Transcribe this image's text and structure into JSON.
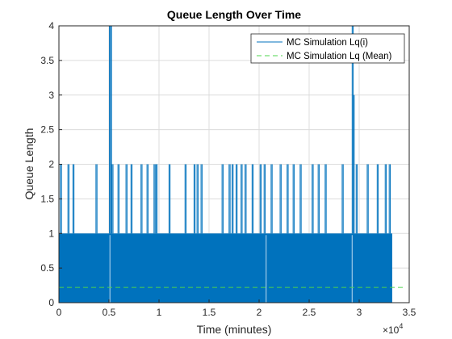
{
  "chart_data": {
    "type": "line",
    "title": "Queue Length Over Time",
    "xlabel": "Time (minutes)",
    "ylabel": "Queue Length",
    "x_exponent_label": "×10",
    "x_exponent": "4",
    "x_ticks": [
      0,
      0.5,
      1,
      1.5,
      2,
      2.5,
      3,
      3.5
    ],
    "x_tick_labels": [
      "0",
      "0.5",
      "1",
      "1.5",
      "2",
      "2.5",
      "3",
      "3.5"
    ],
    "y_ticks": [
      0,
      0.5,
      1,
      1.5,
      2,
      2.5,
      3,
      3.5,
      4
    ],
    "y_tick_labels": [
      "0",
      "0.5",
      "1",
      "1.5",
      "2",
      "2.5",
      "3",
      "3.5",
      "4"
    ],
    "xlim": [
      0,
      35000
    ],
    "ylim": [
      0,
      4
    ],
    "x_end": 33300,
    "grid": true,
    "legend_position": "top-right",
    "series": [
      {
        "name": "MC Simulation Lq(i)",
        "style": "solid",
        "color": "#0072BD",
        "baseline_values": [
          0,
          1
        ],
        "spikes": [
          {
            "x": 150,
            "y": 2
          },
          {
            "x": 900,
            "y": 2
          },
          {
            "x": 1400,
            "y": 2
          },
          {
            "x": 3700,
            "y": 2
          },
          {
            "x": 5050,
            "y": 4
          },
          {
            "x": 5150,
            "y": 4
          },
          {
            "x": 5300,
            "y": 2
          },
          {
            "x": 5900,
            "y": 2
          },
          {
            "x": 6700,
            "y": 2
          },
          {
            "x": 7200,
            "y": 2
          },
          {
            "x": 8200,
            "y": 2
          },
          {
            "x": 8800,
            "y": 2
          },
          {
            "x": 9500,
            "y": 2
          },
          {
            "x": 9700,
            "y": 2
          },
          {
            "x": 11000,
            "y": 2
          },
          {
            "x": 12600,
            "y": 2
          },
          {
            "x": 13500,
            "y": 2
          },
          {
            "x": 13800,
            "y": 2
          },
          {
            "x": 14200,
            "y": 2
          },
          {
            "x": 16300,
            "y": 2
          },
          {
            "x": 17000,
            "y": 2
          },
          {
            "x": 17300,
            "y": 2
          },
          {
            "x": 17700,
            "y": 2
          },
          {
            "x": 18200,
            "y": 2
          },
          {
            "x": 18600,
            "y": 2
          },
          {
            "x": 19300,
            "y": 2
          },
          {
            "x": 20100,
            "y": 2
          },
          {
            "x": 20500,
            "y": 2
          },
          {
            "x": 21200,
            "y": 2
          },
          {
            "x": 22100,
            "y": 2
          },
          {
            "x": 22800,
            "y": 2
          },
          {
            "x": 23400,
            "y": 2
          },
          {
            "x": 24100,
            "y": 2
          },
          {
            "x": 25300,
            "y": 2
          },
          {
            "x": 25900,
            "y": 2
          },
          {
            "x": 26600,
            "y": 2
          },
          {
            "x": 28300,
            "y": 2
          },
          {
            "x": 29300,
            "y": 4
          },
          {
            "x": 29400,
            "y": 3
          },
          {
            "x": 29700,
            "y": 2
          },
          {
            "x": 30800,
            "y": 2
          },
          {
            "x": 31800,
            "y": 2
          },
          {
            "x": 32600,
            "y": 2
          },
          {
            "x": 33000,
            "y": 2
          }
        ],
        "gaps": [
          5100,
          20700,
          29300
        ]
      },
      {
        "name": "MC Simulation Lq (Mean)",
        "style": "dashed",
        "color": "#4DD44D",
        "y": 0.22
      }
    ]
  }
}
